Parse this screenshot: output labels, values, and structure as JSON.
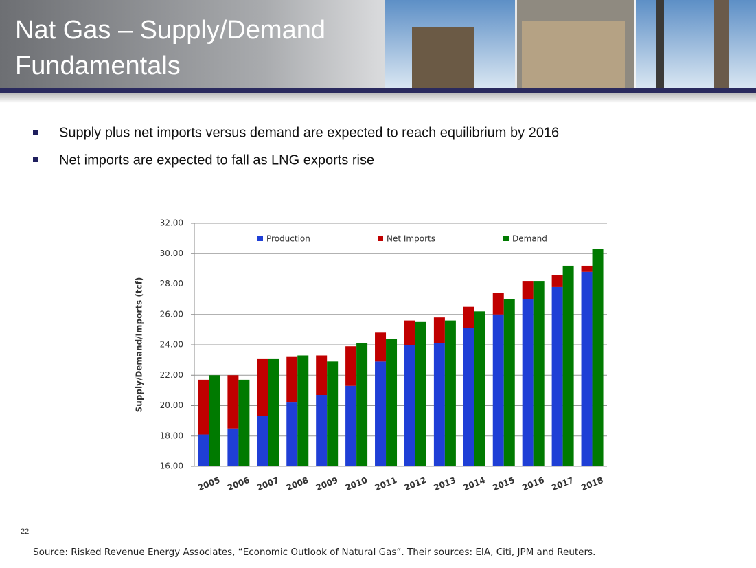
{
  "header": {
    "title_lines": [
      "Nat Gas – Supply/Demand",
      "Fundamentals"
    ]
  },
  "bullets": [
    "Supply plus net imports versus demand are expected to reach equilibrium by 2016",
    "Net imports are expected to fall as LNG exports rise"
  ],
  "chart_data": {
    "type": "bar",
    "y_label": "Supply/Demand/Imports (tcf)",
    "categories": [
      "2005",
      "2006",
      "2007",
      "2008",
      "2009",
      "2010",
      "2011",
      "2012",
      "2013",
      "2014",
      "2015",
      "2016",
      "2017",
      "2018"
    ],
    "series": [
      {
        "name": "Production",
        "color": "#1f3fd6",
        "values": [
          18.1,
          18.5,
          19.3,
          20.2,
          20.7,
          21.3,
          22.9,
          24.0,
          24.1,
          25.1,
          26.0,
          27.0,
          27.8,
          28.8
        ]
      },
      {
        "name": "Net Imports",
        "color": "#c00000",
        "values": [
          3.6,
          3.5,
          3.8,
          3.0,
          2.6,
          2.6,
          1.9,
          1.6,
          1.7,
          1.4,
          1.4,
          1.2,
          0.8,
          0.4
        ]
      },
      {
        "name": "Demand",
        "color": "#007a00",
        "values": [
          22.0,
          21.7,
          23.1,
          23.3,
          22.9,
          24.1,
          24.4,
          25.5,
          25.6,
          26.2,
          27.0,
          28.2,
          29.2,
          30.3
        ]
      }
    ],
    "ylim": [
      16,
      32
    ],
    "yticks": [
      {
        "value": 16,
        "label": "16.00"
      },
      {
        "value": 18,
        "label": "18.00"
      },
      {
        "value": 20,
        "label": "20.00"
      },
      {
        "value": 22,
        "label": "22.00"
      },
      {
        "value": 24,
        "label": "24.00"
      },
      {
        "value": 26,
        "label": "26.00"
      },
      {
        "value": 28,
        "label": "28.00"
      },
      {
        "value": 30,
        "label": "30.00"
      },
      {
        "value": 32,
        "label": "32.00"
      }
    ],
    "grid": true,
    "legend": "top"
  },
  "footer": {
    "page": "22",
    "source": "Source: Risked Revenue Energy Associates, “Economic Outlook of Natural Gas”. Their sources: EIA, Citi, JPM and Reuters."
  }
}
